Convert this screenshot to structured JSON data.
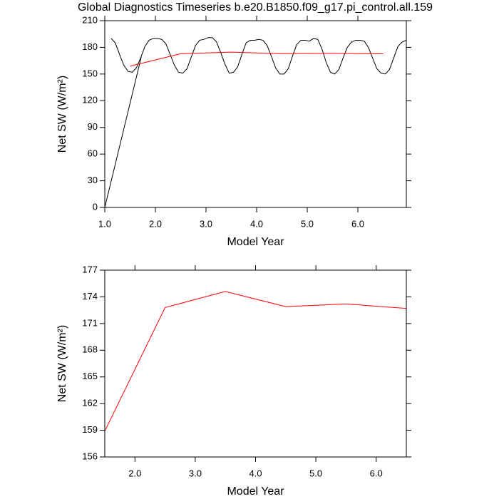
{
  "chart_data": [
    {
      "type": "line",
      "title": "Global Diagnostics Timeseries b.e20.B1850.f09_g17.pi_control.all.159",
      "xlabel": "Model Year",
      "ylabel": "Net SW (W/m²)",
      "xlim": [
        1.0,
        6.958
      ],
      "ylim": [
        0,
        210
      ],
      "xticks": [
        {
          "value": 1,
          "label": "1.0"
        },
        {
          "value": 2,
          "label": "2.0"
        },
        {
          "value": 3,
          "label": "3.0"
        },
        {
          "value": 4,
          "label": "4.0"
        },
        {
          "value": 5,
          "label": "5.0"
        },
        {
          "value": 6,
          "label": "6.0"
        }
      ],
      "yticks": [
        0,
        30,
        60,
        90,
        120,
        150,
        180,
        210
      ],
      "series": [
        {
          "color": "#000000",
          "x": [
            1.125,
            1.208,
            1.292,
            1.375,
            1.458,
            1.542,
            1.625,
            1.708,
            1.792,
            1.875,
            1.958,
            2.042,
            2.125,
            2.208,
            2.292,
            2.375,
            2.458,
            2.542,
            2.625,
            2.708,
            2.792,
            2.875,
            2.958,
            3.042,
            3.125,
            3.208,
            3.292,
            3.375,
            3.458,
            3.542,
            3.625,
            3.708,
            3.792,
            3.875,
            3.958,
            4.042,
            4.125,
            4.208,
            4.292,
            4.375,
            4.458,
            4.542,
            4.625,
            4.708,
            4.792,
            4.875,
            4.958,
            5.042,
            5.125,
            5.208,
            5.292,
            5.375,
            5.458,
            5.542,
            5.625,
            5.708,
            5.792,
            5.875,
            5.958,
            6.042,
            6.125,
            6.208,
            6.292,
            6.375,
            6.458,
            6.542,
            6.625,
            6.708,
            6.792,
            6.875,
            6.958
          ],
          "values": [
            190,
            185,
            172,
            160,
            153,
            152,
            157,
            168,
            181,
            188,
            190,
            190,
            189,
            184,
            172,
            160,
            152,
            151,
            156,
            169,
            182,
            188,
            189,
            191,
            191,
            186,
            174,
            161,
            151,
            152,
            158,
            172,
            185,
            188,
            188,
            189,
            188,
            182,
            170,
            157,
            150,
            150,
            156,
            170,
            183,
            188,
            188,
            187,
            190,
            189,
            178,
            163,
            152,
            150,
            155,
            168,
            180,
            186,
            188,
            188,
            187,
            180,
            168,
            156,
            151,
            150,
            155,
            168,
            181,
            186,
            188
          ]
        },
        {
          "color": "#000000",
          "x": [
            1.0,
            1.72
          ],
          "values": [
            0,
            169
          ]
        },
        {
          "color": "#ff0000",
          "x": [
            1.5,
            2.5,
            3.5,
            4.5,
            5.5,
            6.5
          ],
          "values": [
            158.9,
            172.8,
            174.6,
            172.9,
            173.2,
            172.7
          ]
        }
      ]
    },
    {
      "type": "line",
      "xlabel": "Model Year",
      "ylabel": "Net SW (W/m²)",
      "xlim": [
        1.5,
        6.5
      ],
      "ylim": [
        156,
        177
      ],
      "xticks": [
        {
          "value": 2,
          "label": "2.0"
        },
        {
          "value": 3,
          "label": "3.0"
        },
        {
          "value": 4,
          "label": "4.0"
        },
        {
          "value": 5,
          "label": "5.0"
        },
        {
          "value": 6,
          "label": "6.0"
        }
      ],
      "yticks": [
        156,
        159,
        162,
        165,
        168,
        171,
        174,
        177
      ],
      "series": [
        {
          "color": "#ff0000",
          "x": [
            1.5,
            2.5,
            3.5,
            4.5,
            5.5,
            6.5
          ],
          "values": [
            158.9,
            172.8,
            174.6,
            172.9,
            173.2,
            172.7
          ]
        }
      ]
    }
  ]
}
